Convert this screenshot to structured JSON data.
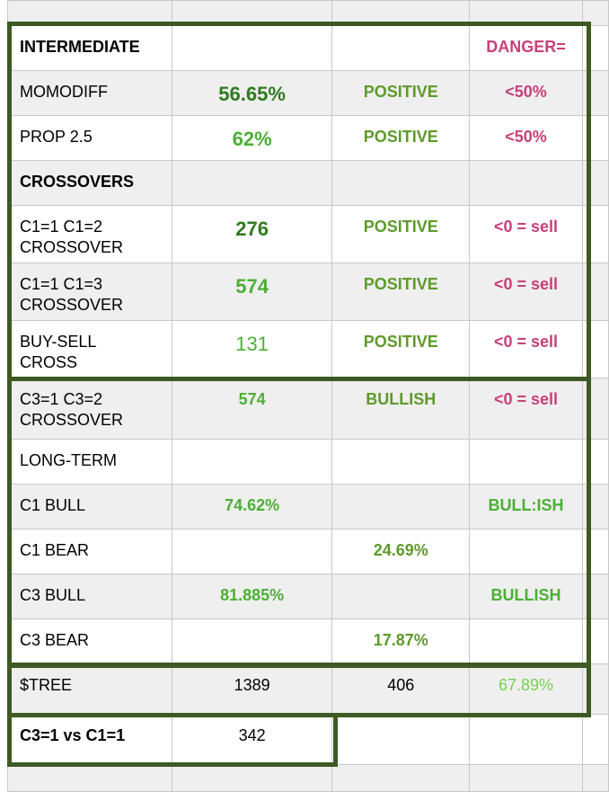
{
  "colors": {
    "frame": "#3d5a23",
    "dark_green": "#2f7a1f",
    "green": "#4caf35",
    "olive": "#5e9a2a",
    "pink": "#c8407a",
    "light_green": "#77d150"
  },
  "rows": [
    {
      "bg": "g",
      "h": 28,
      "cells": [
        {
          "t": ""
        },
        {
          "t": ""
        },
        {
          "t": ""
        },
        {
          "t": ""
        },
        {
          "t": ""
        }
      ]
    },
    {
      "bg": "w",
      "h": 50,
      "cells": [
        {
          "t": "INTERMEDIATE",
          "b": true
        },
        {
          "t": ""
        },
        {
          "t": ""
        },
        {
          "t": "DANGER=",
          "c": "#c8407a",
          "b": true
        },
        {
          "t": ""
        }
      ]
    },
    {
      "bg": "g",
      "h": 50,
      "cells": [
        {
          "t": "MOMODIFF"
        },
        {
          "t": "56.65%",
          "c": "#2f7a1f",
          "b": true,
          "big": true
        },
        {
          "t": "POSITIVE",
          "c": "#5e9a2a",
          "b": true
        },
        {
          "t": "<50%",
          "c": "#c8407a",
          "b": true
        },
        {
          "t": ""
        }
      ]
    },
    {
      "bg": "w",
      "h": 50,
      "cells": [
        {
          "t": "PROP 2.5"
        },
        {
          "t": "62%",
          "c": "#4caf35",
          "b": true,
          "big": true
        },
        {
          "t": "POSITIVE",
          "c": "#5e9a2a",
          "b": true
        },
        {
          "t": "<50%",
          "c": "#c8407a",
          "b": true
        },
        {
          "t": ""
        }
      ]
    },
    {
      "bg": "g",
      "h": 50,
      "cells": [
        {
          "t": "CROSSOVERS",
          "b": true
        },
        {
          "t": ""
        },
        {
          "t": ""
        },
        {
          "t": ""
        },
        {
          "t": ""
        }
      ]
    },
    {
      "bg": "w",
      "h": 64,
      "cells": [
        {
          "t": "C1=1 C1=2",
          "t2": "CROSSOVER"
        },
        {
          "t": "276",
          "c": "#2f7a1f",
          "b": true,
          "big": true
        },
        {
          "t": "POSITIVE",
          "c": "#5e9a2a",
          "b": true
        },
        {
          "t": "<0 = sell",
          "c": "#c8407a",
          "b": true
        },
        {
          "t": ""
        }
      ]
    },
    {
      "bg": "g",
      "h": 64,
      "cells": [
        {
          "t": "C1=1 C1=3",
          "t2": "CROSSOVER"
        },
        {
          "t": "574",
          "c": "#4caf35",
          "b": true,
          "big": true
        },
        {
          "t": "POSITIVE",
          "c": "#5e9a2a",
          "b": true
        },
        {
          "t": "<0 = sell",
          "c": "#c8407a",
          "b": true
        },
        {
          "t": ""
        }
      ]
    },
    {
      "bg": "w",
      "h": 64,
      "cells": [
        {
          "t": "BUY-SELL",
          "t2": "CROSS"
        },
        {
          "t": "131",
          "c": "#4caf35",
          "big": true
        },
        {
          "t": "POSITIVE",
          "c": "#5e9a2a",
          "b": true
        },
        {
          "t": "<0 = sell",
          "c": "#c8407a",
          "b": true
        },
        {
          "t": ""
        }
      ]
    },
    {
      "bg": "g",
      "h": 68,
      "cells": [
        {
          "t": "C3=1 C3=2",
          "t2": "CROSSOVER"
        },
        {
          "t": "574",
          "c": "#4caf35",
          "b": true
        },
        {
          "t": "BULLISH",
          "c": "#5e9a2a",
          "b": true
        },
        {
          "t": "<0 = sell",
          "c": "#c8407a",
          "b": true
        },
        {
          "t": ""
        }
      ]
    },
    {
      "bg": "w",
      "h": 50,
      "cells": [
        {
          "t": "LONG-TERM"
        },
        {
          "t": ""
        },
        {
          "t": ""
        },
        {
          "t": ""
        },
        {
          "t": ""
        }
      ]
    },
    {
      "bg": "g",
      "h": 50,
      "cells": [
        {
          "t": "C1 BULL"
        },
        {
          "t": "74.62%",
          "c": "#4caf35",
          "b": true
        },
        {
          "t": ""
        },
        {
          "t": "BULL:ISH",
          "c": "#4caf35",
          "b": true
        },
        {
          "t": ""
        }
      ]
    },
    {
      "bg": "w",
      "h": 50,
      "cells": [
        {
          "t": "C1 BEAR"
        },
        {
          "t": ""
        },
        {
          "t": "24.69%",
          "c": "#5e9a2a",
          "b": true
        },
        {
          "t": ""
        },
        {
          "t": ""
        }
      ]
    },
    {
      "bg": "g",
      "h": 50,
      "cells": [
        {
          "t": "C3 BULL"
        },
        {
          "t": "81.885%",
          "c": "#4caf35",
          "b": true
        },
        {
          "t": ""
        },
        {
          "t": "BULLISH",
          "c": "#4caf35",
          "b": true
        },
        {
          "t": ""
        }
      ]
    },
    {
      "bg": "w",
      "h": 50,
      "cells": [
        {
          "t": "C3 BEAR"
        },
        {
          "t": ""
        },
        {
          "t": "17.87%",
          "c": "#5e9a2a",
          "b": true
        },
        {
          "t": ""
        },
        {
          "t": ""
        }
      ]
    },
    {
      "bg": "g",
      "h": 56,
      "cells": [
        {
          "t": "$TREE"
        },
        {
          "t": "1389"
        },
        {
          "t": "406"
        },
        {
          "t": "67.89%",
          "c": "#77d150"
        },
        {
          "t": ""
        }
      ]
    },
    {
      "bg": "w",
      "h": 56,
      "cells": [
        {
          "t": "C3=1 vs C1=1",
          "b": true
        },
        {
          "t": "342"
        },
        {
          "t": ""
        },
        {
          "t": ""
        },
        {
          "t": ""
        }
      ]
    },
    {
      "bg": "g",
      "h": 30,
      "cells": [
        {
          "t": ""
        },
        {
          "t": ""
        },
        {
          "t": ""
        },
        {
          "t": ""
        },
        {
          "t": ""
        }
      ]
    }
  ]
}
